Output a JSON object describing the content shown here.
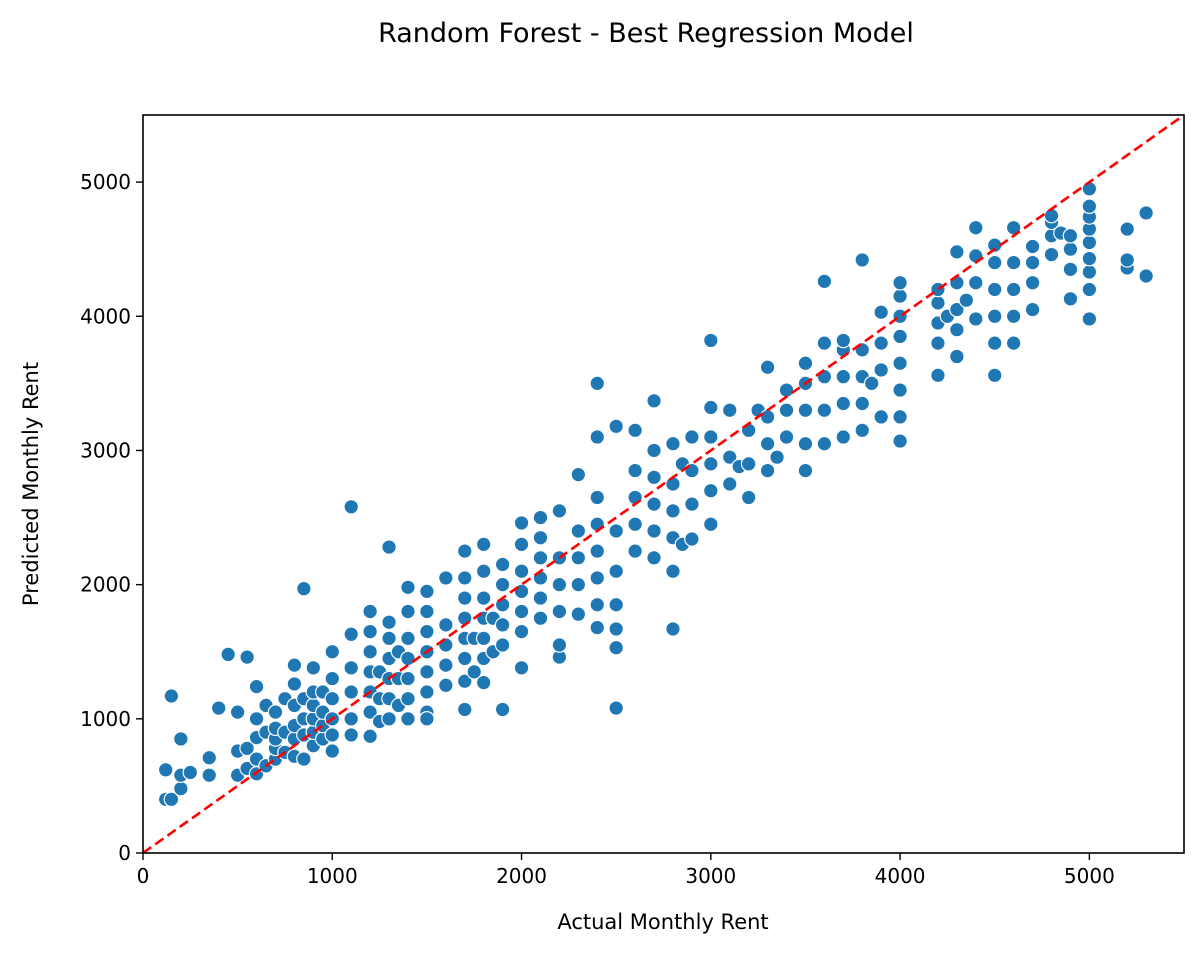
{
  "chart_data": {
    "type": "scatter",
    "title": "Random Forest - Best Regression Model",
    "xlabel": "Actual Monthly Rent",
    "ylabel": "Predicted Monthly Rent",
    "xlim": [
      0,
      5500
    ],
    "ylim": [
      0,
      5500
    ],
    "xticks": [
      0,
      1000,
      2000,
      3000,
      4000,
      5000
    ],
    "yticks": [
      0,
      1000,
      2000,
      3000,
      4000,
      5000
    ],
    "grid": false,
    "legend": "none",
    "colors": {
      "points": "#1f77b4",
      "point_edge": "#ffffff",
      "reference_line": "#ff0000"
    },
    "reference_line": {
      "style": "dashed",
      "from": [
        0,
        0
      ],
      "to": [
        5500,
        5500
      ]
    },
    "series": [
      {
        "x": [
          120,
          120,
          150,
          150,
          200,
          200,
          200,
          250,
          350,
          350,
          400,
          450,
          500,
          500,
          500,
          550,
          550,
          550,
          600,
          600,
          600,
          600,
          600,
          650,
          650,
          650,
          700,
          700,
          700,
          700,
          700,
          750,
          750,
          750,
          800,
          800,
          800,
          800,
          800,
          800,
          850,
          850,
          850,
          850,
          850,
          900,
          900,
          900,
          900,
          900,
          900,
          950,
          950,
          950,
          950,
          1000,
          1000,
          1000,
          1000,
          1000,
          1000,
          1100,
          1100,
          1100,
          1100,
          1100,
          1100,
          1200,
          1200,
          1200,
          1200,
          1200,
          1200,
          1200,
          1250,
          1250,
          1250,
          1300,
          1300,
          1300,
          1300,
          1300,
          1300,
          1300,
          1350,
          1350,
          1350,
          1400,
          1400,
          1400,
          1400,
          1400,
          1400,
          1400,
          1500,
          1500,
          1500,
          1500,
          1500,
          1500,
          1500,
          1500,
          1600,
          1600,
          1600,
          1600,
          1600,
          1700,
          1700,
          1700,
          1700,
          1700,
          1700,
          1700,
          1700,
          1750,
          1750,
          1800,
          1800,
          1800,
          1800,
          1800,
          1800,
          1800,
          1850,
          1850,
          1900,
          1900,
          1900,
          1900,
          1900,
          1900,
          2000,
          2000,
          2000,
          2000,
          2000,
          2000,
          2000,
          2100,
          2100,
          2100,
          2100,
          2100,
          2100,
          2200,
          2200,
          2200,
          2200,
          2200,
          2200,
          2300,
          2300,
          2300,
          2300,
          2300,
          2400,
          2400,
          2400,
          2400,
          2400,
          2400,
          2400,
          2400,
          2500,
          2500,
          2500,
          2500,
          2500,
          2500,
          2500,
          2600,
          2600,
          2600,
          2600,
          2600,
          2700,
          2700,
          2700,
          2700,
          2700,
          2700,
          2800,
          2800,
          2800,
          2800,
          2800,
          2800,
          2850,
          2850,
          2900,
          2900,
          2900,
          2900,
          3000,
          3000,
          3000,
          3000,
          3000,
          3000,
          3100,
          3100,
          3100,
          3150,
          3200,
          3200,
          3200,
          3250,
          3300,
          3300,
          3300,
          3300,
          3350,
          3400,
          3400,
          3400,
          3500,
          3500,
          3500,
          3500,
          3500,
          3600,
          3600,
          3600,
          3600,
          3600,
          3700,
          3700,
          3700,
          3700,
          3700,
          3800,
          3800,
          3800,
          3800,
          3800,
          3850,
          3900,
          3900,
          3900,
          3900,
          4000,
          4000,
          4000,
          4000,
          4000,
          4000,
          4000,
          4000,
          4200,
          4200,
          4200,
          4200,
          4200,
          4250,
          4300,
          4300,
          4300,
          4300,
          4300,
          4350,
          4400,
          4400,
          4400,
          4400,
          4500,
          4500,
          4500,
          4500,
          4500,
          4500,
          4600,
          4600,
          4600,
          4600,
          4600,
          4700,
          4700,
          4700,
          4700,
          4800,
          4800,
          4800,
          4800,
          4850,
          4900,
          4900,
          4900,
          4900,
          5000,
          5000,
          5000,
          5000,
          5000,
          5000,
          5000,
          5000,
          5000,
          5200,
          5200,
          5200,
          5300,
          5300
        ],
        "y": [
          400,
          620,
          1170,
          400,
          480,
          580,
          850,
          600,
          580,
          710,
          1080,
          1480,
          580,
          760,
          1050,
          630,
          780,
          1460,
          590,
          700,
          860,
          1000,
          1240,
          650,
          900,
          1100,
          700,
          780,
          850,
          930,
          1050,
          750,
          900,
          1150,
          720,
          850,
          950,
          1100,
          1260,
          1400,
          700,
          880,
          1000,
          1150,
          1970,
          800,
          900,
          1000,
          1100,
          1200,
          1380,
          850,
          950,
          1050,
          1200,
          760,
          880,
          1000,
          1150,
          1300,
          1500,
          880,
          1000,
          1200,
          1380,
          1630,
          2580,
          870,
          1050,
          1200,
          1350,
          1500,
          1650,
          1800,
          980,
          1150,
          1350,
          1000,
          1150,
          1300,
          1450,
          1600,
          1720,
          2280,
          1100,
          1300,
          1500,
          1000,
          1150,
          1300,
          1450,
          1600,
          1800,
          1980,
          1050,
          1200,
          1350,
          1500,
          1650,
          1800,
          1950,
          1000,
          1250,
          1400,
          1550,
          1700,
          2050,
          1070,
          1280,
          1450,
          1600,
          1750,
          1900,
          2050,
          2250,
          1350,
          1600,
          1270,
          1450,
          1600,
          1750,
          1900,
          2100,
          2300,
          1500,
          1750,
          1070,
          1550,
          1700,
          1850,
          2000,
          2150,
          1380,
          1650,
          1800,
          1950,
          2100,
          2300,
          2460,
          1750,
          1900,
          2050,
          2200,
          2350,
          2500,
          1460,
          1550,
          1800,
          2000,
          2200,
          2550,
          1780,
          2000,
          2200,
          2400,
          2820,
          1680,
          1850,
          2050,
          2250,
          2450,
          2650,
          3100,
          3500,
          1080,
          1530,
          1670,
          1850,
          2100,
          2400,
          3180,
          2250,
          2450,
          2650,
          2850,
          3150,
          2200,
          2400,
          2600,
          2800,
          3000,
          3370,
          1670,
          2100,
          2350,
          2550,
          2750,
          3050,
          2300,
          2900,
          2340,
          2600,
          2850,
          3100,
          2450,
          2700,
          2900,
          3100,
          3320,
          3820,
          2750,
          2950,
          3300,
          2880,
          2650,
          2900,
          3150,
          3300,
          2850,
          3050,
          3250,
          3620,
          2950,
          3100,
          3300,
          3450,
          2850,
          3050,
          3300,
          3500,
          3650,
          3050,
          3300,
          3550,
          3800,
          4260,
          3100,
          3350,
          3550,
          3750,
          3820,
          3150,
          3350,
          3550,
          3750,
          4420,
          3500,
          3250,
          3600,
          3800,
          4030,
          3070,
          3250,
          3450,
          3650,
          3850,
          4000,
          4150,
          4250,
          3560,
          3800,
          3950,
          4100,
          4200,
          4000,
          3700,
          3900,
          4050,
          4250,
          4480,
          4120,
          3980,
          4250,
          4450,
          4660,
          3560,
          3800,
          4000,
          4200,
          4400,
          4530,
          3800,
          4000,
          4200,
          4400,
          4660,
          4050,
          4250,
          4400,
          4520,
          4460,
          4600,
          4700,
          4750,
          4620,
          4130,
          4350,
          4500,
          4600,
          3980,
          4200,
          4330,
          4430,
          4550,
          4650,
          4740,
          4820,
          4950,
          4360,
          4420,
          4650,
          4300,
          4770
        ]
      }
    ]
  }
}
